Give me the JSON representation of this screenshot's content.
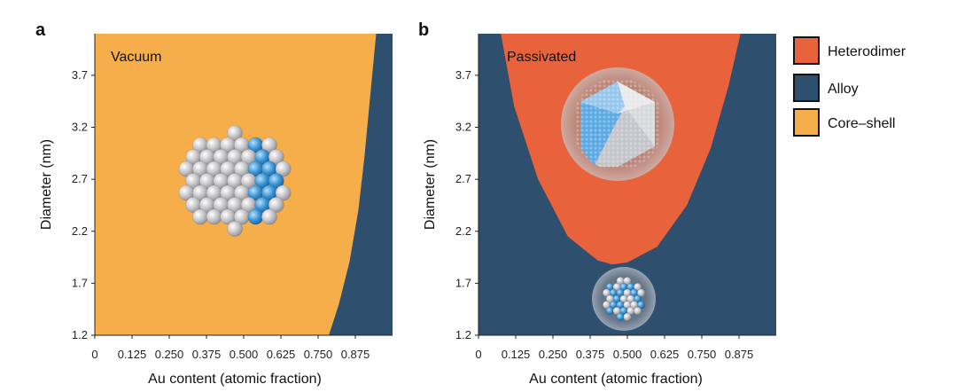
{
  "chart_data": [
    {
      "panel": "a",
      "type": "phase-diagram",
      "title": "Vacuum",
      "xlabel": "Au content (atomic fraction)",
      "ylabel": "Diameter (nm)",
      "xlim": [
        0,
        1
      ],
      "ylim": [
        1.2,
        4.1
      ],
      "xticks": [
        "0",
        "0.125",
        "0.250",
        "0.375",
        "0.500",
        "0.625",
        "0.750",
        "0.875"
      ],
      "xtick_values": [
        0,
        0.125,
        0.25,
        0.375,
        0.5,
        0.625,
        0.75,
        0.875
      ],
      "yticks": [
        "1.2",
        "1.7",
        "2.2",
        "2.7",
        "3.2",
        "3.7"
      ],
      "ytick_values": [
        1.2,
        1.7,
        2.2,
        2.7,
        3.2,
        3.7
      ],
      "background_phase": "Core-shell",
      "boundary_phase": "Alloy",
      "boundary": [
        {
          "x": 0.786,
          "y": 1.2
        },
        {
          "x": 0.82,
          "y": 1.5
        },
        {
          "x": 0.855,
          "y": 1.9
        },
        {
          "x": 0.885,
          "y": 2.4
        },
        {
          "x": 0.905,
          "y": 2.9
        },
        {
          "x": 0.925,
          "y": 3.5
        },
        {
          "x": 0.945,
          "y": 4.1
        }
      ]
    },
    {
      "panel": "b",
      "type": "phase-diagram",
      "title": "Passivated",
      "xlabel": "Au content (atomic fraction)",
      "ylabel": "Diameter (nm)",
      "xlim": [
        0,
        1
      ],
      "ylim": [
        1.2,
        4.1
      ],
      "xticks": [
        "0",
        "0.125",
        "0.250",
        "0.375",
        "0.500",
        "0.625",
        "0.750",
        "0.875"
      ],
      "xtick_values": [
        0,
        0.125,
        0.25,
        0.375,
        0.5,
        0.625,
        0.75,
        0.875
      ],
      "yticks": [
        "1.2",
        "1.7",
        "2.2",
        "2.7",
        "3.2",
        "3.7"
      ],
      "ytick_values": [
        1.2,
        1.7,
        2.2,
        2.7,
        3.2,
        3.7
      ],
      "background_phase": "Alloy",
      "boundary_phase": "Heterodimer",
      "boundary": [
        {
          "x": 0.075,
          "y": 4.1
        },
        {
          "x": 0.12,
          "y": 3.4
        },
        {
          "x": 0.2,
          "y": 2.7
        },
        {
          "x": 0.3,
          "y": 2.15
        },
        {
          "x": 0.4,
          "y": 1.92
        },
        {
          "x": 0.45,
          "y": 1.88
        },
        {
          "x": 0.5,
          "y": 1.9
        },
        {
          "x": 0.6,
          "y": 2.05
        },
        {
          "x": 0.7,
          "y": 2.45
        },
        {
          "x": 0.78,
          "y": 3.0
        },
        {
          "x": 0.84,
          "y": 3.6
        },
        {
          "x": 0.88,
          "y": 4.1
        }
      ]
    }
  ],
  "legend": [
    {
      "label": "Heterodimer",
      "color": "#e8623c"
    },
    {
      "label": "Alloy",
      "color": "#2e4f6e"
    },
    {
      "label": "Core–shell",
      "color": "#f5ae4a"
    }
  ],
  "colors": {
    "heterodimer": "#e8623c",
    "alloy": "#2e4f6e",
    "coreshell": "#f5ae4a",
    "silver_atom": "#c8c8cc",
    "gold_atom": "#3a97d8"
  }
}
